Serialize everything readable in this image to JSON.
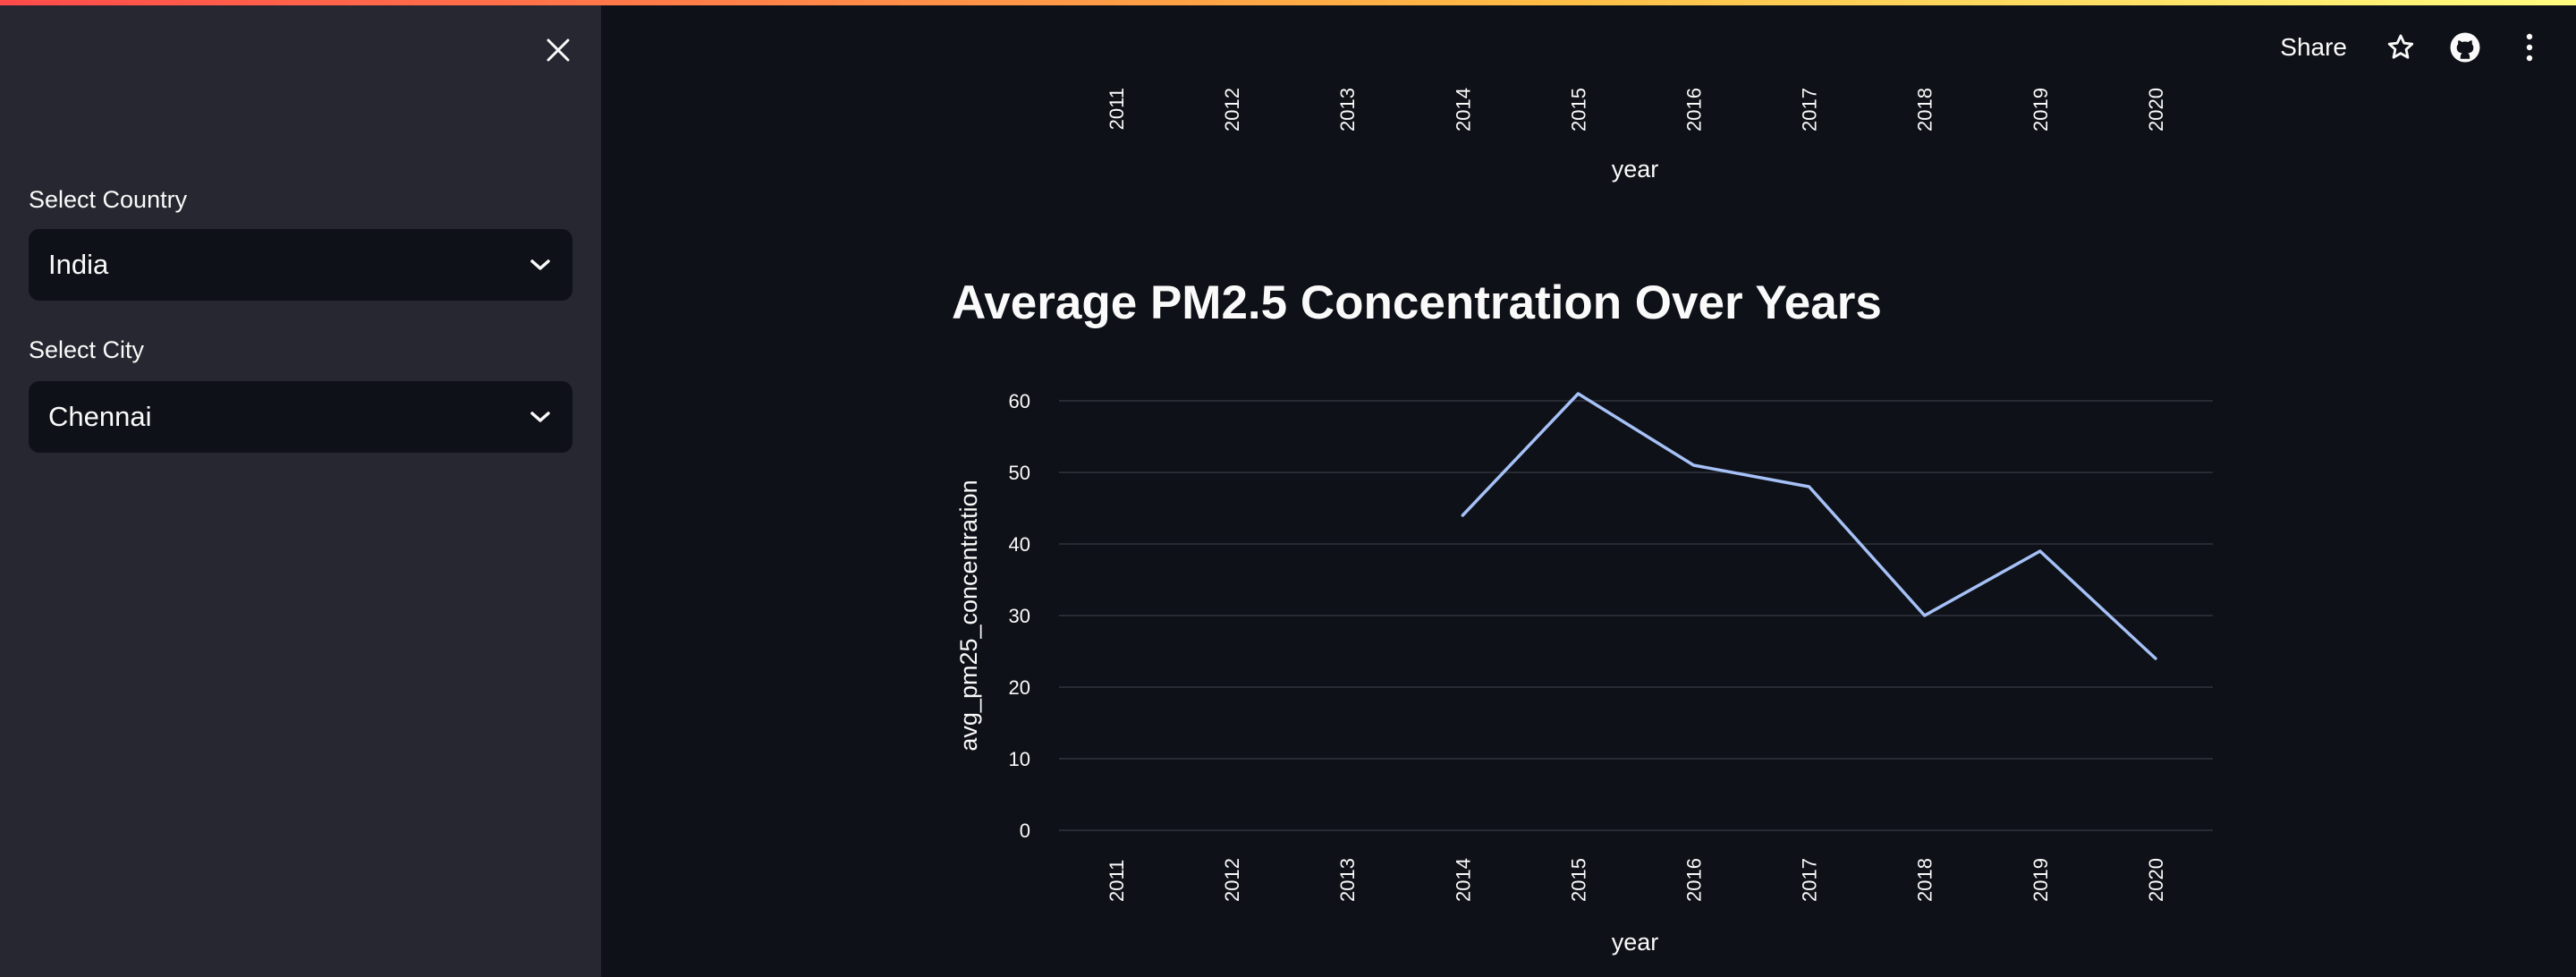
{
  "sidebar": {
    "country_label": "Select Country",
    "country_value": "India",
    "city_label": "Select City",
    "city_value": "Chennai"
  },
  "header": {
    "share_label": "Share"
  },
  "top_chart_partial": {
    "x_ticks": [
      "2011",
      "2012",
      "2013",
      "2014",
      "2015",
      "2016",
      "2017",
      "2018",
      "2019",
      "2020"
    ],
    "xlabel": "year"
  },
  "chart_title": "Average PM2.5 Concentration Over Years",
  "chart_data": {
    "type": "line",
    "x": [
      "2011",
      "2012",
      "2013",
      "2014",
      "2015",
      "2016",
      "2017",
      "2018",
      "2019",
      "2020"
    ],
    "series": [
      {
        "values": [
          null,
          null,
          null,
          44,
          61,
          51,
          48,
          30,
          39,
          24
        ]
      }
    ],
    "xlabel": "year",
    "ylabel": "avg_pm25_concentration",
    "ylim": [
      0,
      60
    ],
    "y_ticks": [
      0,
      10,
      20,
      30,
      40,
      50,
      60
    ],
    "grid": true,
    "line_color": "#a6c1f7"
  },
  "colors": {
    "background": "#0e1117",
    "sidebar": "#262730",
    "gridline": "#31333f"
  }
}
